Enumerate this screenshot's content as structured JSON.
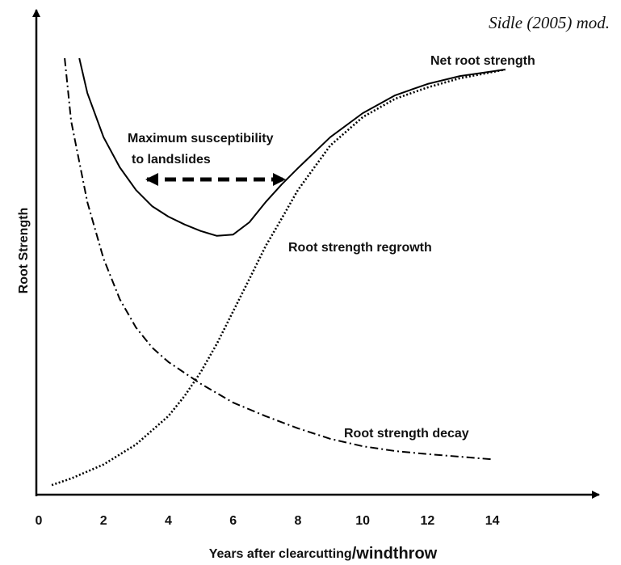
{
  "chart_data": {
    "type": "line",
    "source": "Sidle (2005) mod.",
    "ylabel": "Root Strength",
    "xlabel": [
      "Years after clearcutting",
      "/windthrow"
    ],
    "xlim": [
      -0.1,
      17.25
    ],
    "ylim": [
      0,
      100
    ],
    "xticks": [
      0,
      2,
      4,
      6,
      8,
      10,
      12,
      14
    ],
    "annotations": [
      "Net root strength",
      "Maximum susceptibility",
      "to landslides",
      "Root strength regrowth",
      "Root strength decay"
    ],
    "series": [
      {
        "style": "solid",
        "color": "#000000",
        "x": [
          1.25,
          1.5,
          2,
          2.5,
          3,
          3.5,
          4,
          4.5,
          5,
          5.5,
          6,
          6.5,
          7,
          7.5,
          8,
          9,
          10,
          11,
          12,
          13,
          14.4
        ],
        "values": [
          100,
          92,
          81.9,
          75,
          69.8,
          66.1,
          63.7,
          61.9,
          60.4,
          59.3,
          59.6,
          62.4,
          67,
          71.1,
          74.8,
          81.9,
          87.4,
          91.5,
          94.1,
          95.9,
          97.4
        ]
      },
      {
        "style": "dotted",
        "color": "#000000",
        "x": [
          0.4,
          1,
          2,
          3,
          4,
          4.5,
          5,
          5.5,
          6,
          6.5,
          7,
          7.5,
          8,
          9,
          10,
          11,
          12,
          13,
          14.4
        ],
        "values": [
          2.2,
          3.7,
          6.9,
          11.5,
          18,
          22.6,
          28.1,
          34.6,
          42,
          49.4,
          56.9,
          63.3,
          69.8,
          80,
          86.5,
          90.7,
          93.3,
          95.4,
          97.4
        ]
      },
      {
        "style": "dashdot",
        "color": "#000000",
        "x": [
          0.8,
          1,
          1.5,
          2,
          2.5,
          3,
          3.5,
          4,
          5,
          6,
          7,
          8,
          9,
          10,
          11,
          12,
          13,
          14
        ],
        "values": [
          100,
          85.6,
          67,
          54.1,
          44.8,
          38.3,
          33.7,
          30.4,
          25.4,
          21.1,
          18,
          15.2,
          12.8,
          11.1,
          10,
          9.3,
          8.7,
          8.1
        ]
      }
    ]
  }
}
